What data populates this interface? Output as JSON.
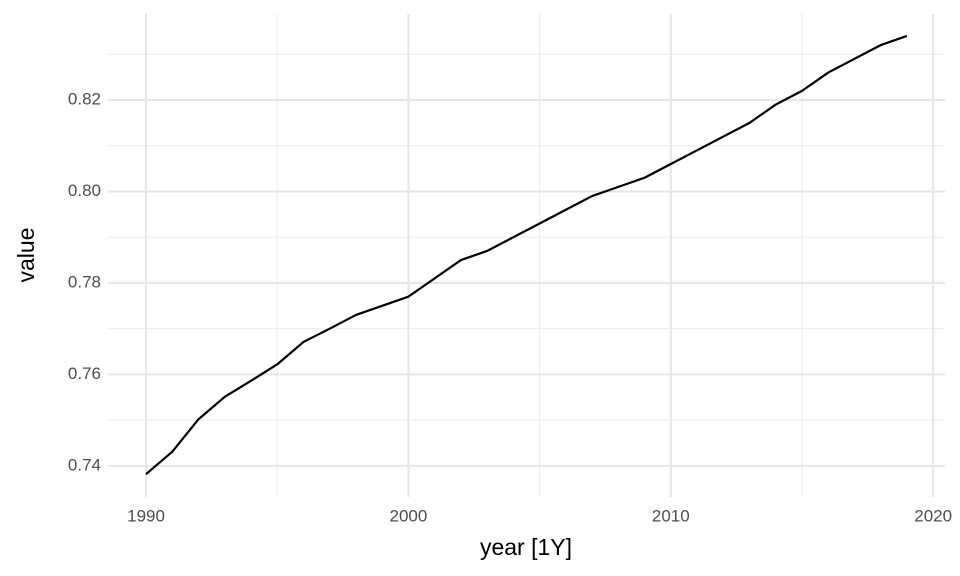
{
  "chart_data": {
    "type": "line",
    "x_label": "year [1Y]",
    "y_label": "value",
    "x": [
      1990,
      1991,
      1992,
      1993,
      1994,
      1995,
      1996,
      1997,
      1998,
      1999,
      2000,
      2001,
      2002,
      2003,
      2004,
      2005,
      2006,
      2007,
      2008,
      2009,
      2010,
      2011,
      2012,
      2013,
      2014,
      2015,
      2016,
      2017,
      2018,
      2019
    ],
    "values": [
      0.7382,
      0.7431,
      0.7502,
      0.7551,
      0.7586,
      0.7622,
      0.7671,
      0.77,
      0.773,
      0.775,
      0.777,
      0.781,
      0.785,
      0.787,
      0.79,
      0.793,
      0.796,
      0.799,
      0.801,
      0.803,
      0.806,
      0.809,
      0.812,
      0.815,
      0.819,
      0.822,
      0.826,
      0.829,
      0.832,
      0.834
    ],
    "color": "#000000",
    "xlim": [
      1988.55,
      2020.45
    ],
    "xticks": [
      1990,
      2000,
      2010,
      2020
    ],
    "x_minor_ticks": [
      1995,
      2005,
      2015
    ],
    "ylim": [
      0.7332,
      0.8388
    ],
    "yticks": [
      0.74,
      0.76,
      0.78,
      {
        "value": 0.8,
        "label": "0.80"
      },
      0.82
    ],
    "y_minor_ticks": [
      0.75,
      0.77,
      0.79,
      0.81,
      0.83
    ],
    "grid": true
  }
}
